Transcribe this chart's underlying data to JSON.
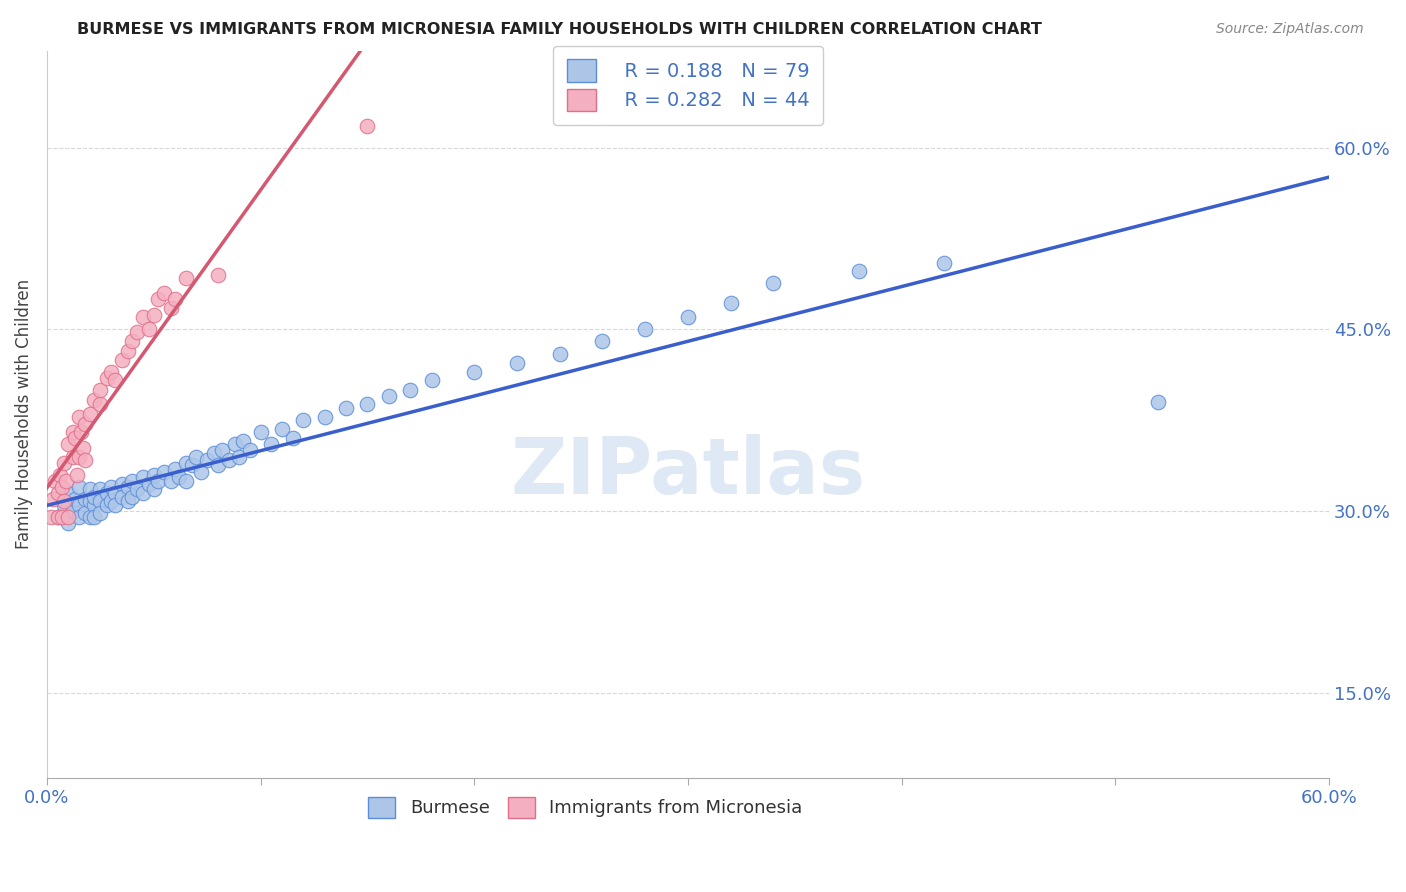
{
  "title": "BURMESE VS IMMIGRANTS FROM MICRONESIA FAMILY HOUSEHOLDS WITH CHILDREN CORRELATION CHART",
  "source": "Source: ZipAtlas.com",
  "ylabel": "Family Households with Children",
  "xlim": [
    0.0,
    0.6
  ],
  "ylim": [
    0.08,
    0.68
  ],
  "blue_color": "#adc6e8",
  "pink_color": "#f4afc0",
  "blue_edge_color": "#5b8dd9",
  "pink_edge_color": "#e0708a",
  "blue_line_color": "#3a5fcd",
  "pink_line_color": "#d45870",
  "watermark": "ZIPatlas",
  "background_color": "#ffffff",
  "grid_color": "#d8d8d8",
  "title_color": "#222222",
  "axis_label_color": "#444444",
  "tick_color": "#4472c4",
  "legend_r1": "R = 0.188",
  "legend_n1": "N = 79",
  "legend_r2": "R = 0.282",
  "legend_n2": "N = 44",
  "blue_scatter_x": [
    0.005,
    0.008,
    0.01,
    0.01,
    0.012,
    0.013,
    0.015,
    0.015,
    0.015,
    0.018,
    0.018,
    0.02,
    0.02,
    0.02,
    0.022,
    0.022,
    0.022,
    0.025,
    0.025,
    0.025,
    0.028,
    0.028,
    0.03,
    0.03,
    0.032,
    0.032,
    0.035,
    0.035,
    0.038,
    0.038,
    0.04,
    0.04,
    0.042,
    0.045,
    0.045,
    0.048,
    0.05,
    0.05,
    0.052,
    0.055,
    0.058,
    0.06,
    0.062,
    0.065,
    0.065,
    0.068,
    0.07,
    0.072,
    0.075,
    0.078,
    0.08,
    0.082,
    0.085,
    0.088,
    0.09,
    0.092,
    0.095,
    0.1,
    0.105,
    0.11,
    0.115,
    0.12,
    0.13,
    0.14,
    0.15,
    0.16,
    0.17,
    0.18,
    0.2,
    0.22,
    0.24,
    0.26,
    0.28,
    0.3,
    0.32,
    0.34,
    0.38,
    0.42,
    0.52
  ],
  "blue_scatter_y": [
    0.295,
    0.305,
    0.315,
    0.29,
    0.3,
    0.31,
    0.305,
    0.295,
    0.32,
    0.31,
    0.298,
    0.308,
    0.295,
    0.318,
    0.305,
    0.312,
    0.295,
    0.318,
    0.308,
    0.298,
    0.315,
    0.305,
    0.32,
    0.308,
    0.315,
    0.305,
    0.322,
    0.312,
    0.32,
    0.308,
    0.325,
    0.312,
    0.318,
    0.328,
    0.315,
    0.322,
    0.33,
    0.318,
    0.325,
    0.332,
    0.325,
    0.335,
    0.328,
    0.34,
    0.325,
    0.338,
    0.345,
    0.332,
    0.342,
    0.348,
    0.338,
    0.35,
    0.342,
    0.355,
    0.345,
    0.358,
    0.35,
    0.365,
    0.355,
    0.368,
    0.36,
    0.375,
    0.378,
    0.385,
    0.388,
    0.395,
    0.4,
    0.408,
    0.415,
    0.422,
    0.43,
    0.44,
    0.45,
    0.46,
    0.472,
    0.488,
    0.498,
    0.505,
    0.39
  ],
  "pink_scatter_x": [
    0.002,
    0.003,
    0.004,
    0.005,
    0.005,
    0.006,
    0.007,
    0.007,
    0.008,
    0.008,
    0.009,
    0.01,
    0.01,
    0.012,
    0.012,
    0.013,
    0.014,
    0.015,
    0.015,
    0.016,
    0.017,
    0.018,
    0.018,
    0.02,
    0.022,
    0.025,
    0.025,
    0.028,
    0.03,
    0.032,
    0.035,
    0.038,
    0.04,
    0.042,
    0.045,
    0.048,
    0.05,
    0.052,
    0.055,
    0.058,
    0.06,
    0.065,
    0.08,
    0.15
  ],
  "pink_scatter_y": [
    0.295,
    0.31,
    0.325,
    0.315,
    0.295,
    0.33,
    0.32,
    0.295,
    0.34,
    0.308,
    0.325,
    0.355,
    0.295,
    0.365,
    0.345,
    0.36,
    0.33,
    0.378,
    0.345,
    0.365,
    0.352,
    0.372,
    0.342,
    0.38,
    0.392,
    0.388,
    0.4,
    0.41,
    0.415,
    0.408,
    0.425,
    0.432,
    0.44,
    0.448,
    0.46,
    0.45,
    0.462,
    0.475,
    0.48,
    0.468,
    0.475,
    0.492,
    0.495,
    0.618
  ]
}
